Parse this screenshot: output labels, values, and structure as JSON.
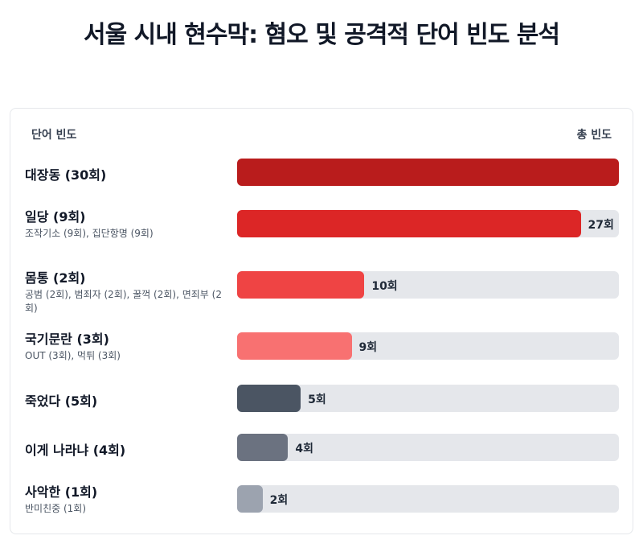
{
  "title": "서울 시내 현수막: 혐오 및 공격적 단어 빈도 분석",
  "chart_data": {
    "type": "bar",
    "orientation": "horizontal",
    "header_left": "단어 빈도",
    "header_right": "총 빈도",
    "xlim": [
      0,
      30
    ],
    "rows": [
      {
        "label": "대장동 (30회)",
        "sub": "",
        "value": 30,
        "value_label": "",
        "color": "#b91c1c"
      },
      {
        "label": "일당 (9회)",
        "sub": "조작기소 (9회), 집단항명 (9회)",
        "value": 27,
        "value_label": "27회",
        "color": "#dc2626"
      },
      {
        "label": "몸통 (2회)",
        "sub": "공범 (2회), 범죄자 (2회), 꿀꺽 (2회), 면죄부 (2회)",
        "value": 10,
        "value_label": "10회",
        "color": "#ef4444"
      },
      {
        "label": "국기문란 (3회)",
        "sub": "OUT (3회), 먹튀 (3회)",
        "value": 9,
        "value_label": "9회",
        "color": "#f87171"
      },
      {
        "label": "죽었다 (5회)",
        "sub": "",
        "value": 5,
        "value_label": "5회",
        "color": "#4b5563"
      },
      {
        "label": "이게 나라냐 (4회)",
        "sub": "",
        "value": 4,
        "value_label": "4회",
        "color": "#6b7280"
      },
      {
        "label": "사악한 (1회)",
        "sub": "반미친중 (1회)",
        "value": 2,
        "value_label": "2회",
        "color": "#9ca3af"
      }
    ]
  }
}
